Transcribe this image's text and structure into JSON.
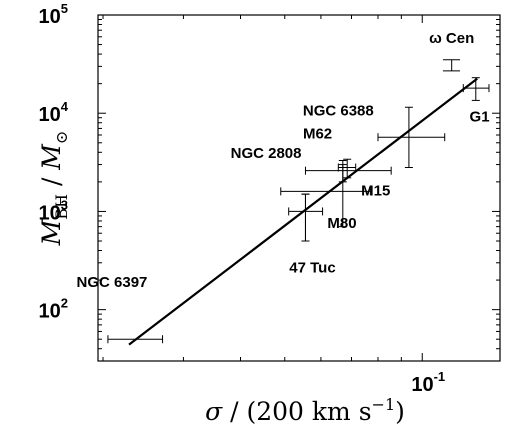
{
  "chart_data": {
    "type": "scatter",
    "x_scale": "log",
    "y_scale": "log",
    "xlim": [
      0.0195,
      0.148
    ],
    "ylim": [
      30,
      100000
    ],
    "grid": false,
    "x_ticks": [
      {
        "value": 0.1,
        "base": "10",
        "exp": "-1"
      }
    ],
    "y_ticks": [
      {
        "value": 100,
        "base": "10",
        "exp": "2"
      },
      {
        "value": 1000,
        "base": "10",
        "exp": "3"
      },
      {
        "value": 10000,
        "base": "10",
        "exp": "4"
      },
      {
        "value": 100000,
        "base": "10",
        "exp": "5"
      }
    ],
    "xlabel": {
      "sigma": "σ",
      "rest": " / (200 km s",
      "exp": "−1",
      "close": ")"
    },
    "ylabel": {
      "m": "M",
      "sub": "BH",
      "slash": " / ",
      "msun": "M",
      "sun": "⊙"
    },
    "fit_line": {
      "x": [
        0.0228,
        0.132
      ],
      "y": [
        44,
        22500
      ]
    },
    "points": [
      {
        "name": "ω Cen",
        "x": 0.116,
        "y": 31000,
        "xerr": [
          0.116,
          0.116
        ],
        "yerr": [
          27000,
          35000
        ],
        "cap_x": [
          0.111,
          0.121
        ]
      },
      {
        "name": "G1",
        "x": 0.131,
        "y": 18000,
        "xerr": [
          0.123,
          0.14
        ],
        "yerr": [
          13500,
          23000
        ]
      },
      {
        "name": "NGC 6388",
        "x": 0.0935,
        "y": 5700,
        "xerr": [
          0.08,
          0.112
        ],
        "yerr": [
          2800,
          11500
        ]
      },
      {
        "name": "M62",
        "x": 0.0685,
        "y": 2800,
        "xerr": [
          0.0655,
          0.0715
        ],
        "yerr": [
          2200,
          3400
        ]
      },
      {
        "name": "NGC 2808",
        "x": 0.067,
        "y": 2600,
        "xerr": [
          0.0555,
          0.0855
        ],
        "yerr": [
          2000,
          3300
        ]
      },
      {
        "name": "M15",
        "x": 0.067,
        "y": 1600,
        "xerr": [
          0.049,
          0.077
        ],
        "yerr": [
          700,
          3000
        ]
      },
      {
        "name": "M80",
        "x": 0.0555,
        "y": 1000,
        "xerr": [
          0.051,
          0.0605
        ],
        "yerr": [
          500,
          1500
        ]
      },
      {
        "name": "47 Tuc",
        "x": 0.0555,
        "y": 1000,
        "xerr": [
          0.0555,
          0.0555
        ],
        "yerr": [
          500,
          1500
        ]
      },
      {
        "name": "NGC 6397",
        "x": 0.0235,
        "y": 50,
        "xerr": [
          0.0205,
          0.027
        ],
        "yerr": [
          50,
          50
        ]
      }
    ],
    "labels": [
      {
        "text": "ω Cen",
        "x": 0.116,
        "y": 52000,
        "anchor": "middle"
      },
      {
        "text": "G1",
        "x": 0.1335,
        "y": 8200,
        "anchor": "middle"
      },
      {
        "text": "NGC 6388",
        "x": 0.0655,
        "y": 9500,
        "anchor": "middle"
      },
      {
        "text": "M62",
        "x": 0.0635,
        "y": 5500,
        "anchor": "end"
      },
      {
        "text": "NGC 2808",
        "x": 0.0455,
        "y": 3500,
        "anchor": "middle"
      },
      {
        "text": "M15",
        "x": 0.0735,
        "y": 1450,
        "anchor": "start"
      },
      {
        "text": "M80",
        "x": 0.062,
        "y": 680,
        "anchor": "start"
      },
      {
        "text": "47 Tuc",
        "x": 0.0575,
        "y": 240,
        "anchor": "middle"
      },
      {
        "text": "NGC 6397",
        "x": 0.0175,
        "y": 170,
        "anchor": "start"
      }
    ]
  }
}
